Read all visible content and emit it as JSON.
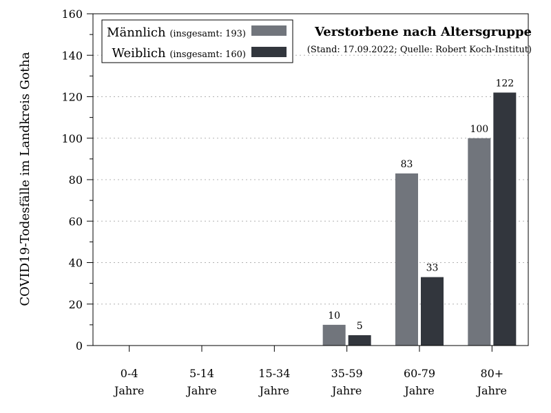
{
  "chart_data": {
    "type": "bar",
    "title": "Verstorbene nach Altersgruppe",
    "subtitle": "(Stand: 17.09.2022; Quelle: Robert Koch-Institut)",
    "ylabel": "COVID19-Todesfälle im Landkreis Gotha",
    "xlabel": "",
    "ylim": [
      0,
      160
    ],
    "yticks": [
      "0",
      "20",
      "40",
      "60",
      "80",
      "100",
      "120",
      "140",
      "160"
    ],
    "yticks_values": [
      0,
      20,
      40,
      60,
      80,
      100,
      120,
      140,
      160
    ],
    "grid": "horizontal-dotted",
    "legend_position": "top-left",
    "categories": [
      {
        "line1": "0-4",
        "line2": "Jahre"
      },
      {
        "line1": "5-14",
        "line2": "Jahre"
      },
      {
        "line1": "15-34",
        "line2": "Jahre"
      },
      {
        "line1": "35-59",
        "line2": "Jahre"
      },
      {
        "line1": "60-79",
        "line2": "Jahre"
      },
      {
        "line1": "80+",
        "line2": "Jahre"
      }
    ],
    "series": [
      {
        "name": "Männlich",
        "total_label": "(insgesamt: 193)",
        "color": "#71757c",
        "values": [
          0,
          0,
          0,
          10,
          83,
          100
        ],
        "labels": [
          "",
          "",
          "",
          "10",
          "83",
          "100"
        ]
      },
      {
        "name": "Weiblich",
        "total_label": "(insgesamt: 160)",
        "color": "#32363d",
        "values": [
          0,
          0,
          0,
          5,
          33,
          122
        ],
        "labels": [
          "",
          "",
          "",
          "5",
          "33",
          "122"
        ]
      }
    ]
  }
}
